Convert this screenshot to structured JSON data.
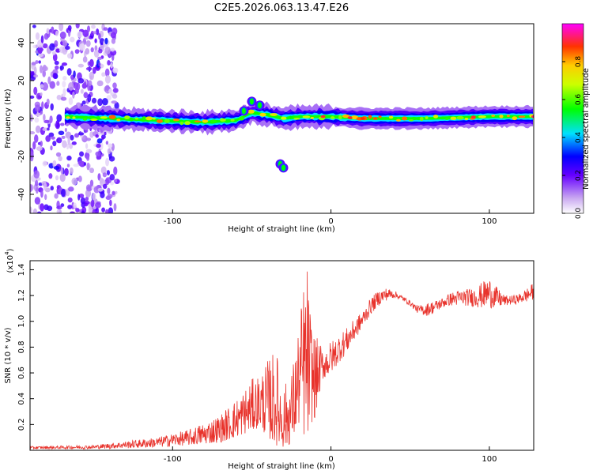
{
  "chart_data": [
    {
      "type": "heatmap",
      "title": "C2E5.2026.063.13.47.E26",
      "xlabel": "Height of straight line (km)",
      "ylabel": "Frequency (Hz)",
      "xlim": [
        -190,
        128
      ],
      "ylim": [
        -50,
        50
      ],
      "xticks": [
        "-100",
        "0",
        "100"
      ],
      "yticks": [
        "40",
        "20",
        "0",
        "-20",
        "-40"
      ],
      "colorbar": {
        "label": "Normalized spectral amplitude",
        "range": [
          0,
          1
        ],
        "ticks": [
          "0.0",
          "0.2",
          "0.4",
          "0.6",
          "0.8"
        ]
      },
      "features": [
        {
          "name": "noise-region",
          "x_range": [
            -190,
            -135
          ],
          "y_range": [
            -50,
            50
          ],
          "amplitude": 0.15
        },
        {
          "name": "main-trace",
          "points": [
            [
              -168,
              1
            ],
            [
              -140,
              0
            ],
            [
              -110,
              -1
            ],
            [
              -80,
              -2
            ],
            [
              -60,
              -1
            ],
            [
              -50,
              3
            ],
            [
              -40,
              2
            ],
            [
              -30,
              0
            ],
            [
              -20,
              1
            ],
            [
              0,
              1
            ],
            [
              20,
              0
            ],
            [
              60,
              0
            ],
            [
              100,
              1
            ],
            [
              128,
              1
            ]
          ]
        },
        {
          "name": "upper-branch",
          "points": [
            [
              -55,
              4
            ],
            [
              -50,
              9
            ],
            [
              -45,
              7
            ]
          ]
        },
        {
          "name": "isolated-blob",
          "points": [
            [
              -32,
              -24
            ],
            [
              -30,
              -26
            ]
          ]
        }
      ]
    },
    {
      "type": "line",
      "xlabel": "Height of straight line (km)",
      "ylabel": "SNR (10 * v/v)",
      "y_scale_label": "(x10",
      "y_scale_exp": "4",
      "xlim": [
        -190,
        128
      ],
      "ylim": [
        0,
        1.47
      ],
      "xticks": [
        "-100",
        "0",
        "100"
      ],
      "yticks": [
        "0.2",
        "0.4",
        "0.6",
        "0.8",
        "1.0",
        "1.2",
        "1.4"
      ],
      "series": [
        {
          "name": "SNR",
          "color": "#e8332c",
          "envelope": {
            "x": [
              -190,
              -150,
              -130,
              -110,
              -90,
              -80,
              -70,
              -60,
              -50,
              -45,
              -40,
              -35,
              -30,
              -25,
              -20,
              -17,
              -15,
              -13,
              -10,
              -8,
              -5,
              0,
              5,
              10,
              15,
              20,
              25,
              30,
              35,
              40,
              45,
              50,
              55,
              60,
              65,
              70,
              75,
              80,
              85,
              90,
              95,
              100,
              105,
              110,
              115,
              120,
              128
            ],
            "low": [
              0.01,
              0.01,
              0.015,
              0.02,
              0.04,
              0.05,
              0.06,
              0.1,
              0.15,
              0.18,
              0.1,
              0.04,
              0.02,
              0.05,
              0.2,
              0.1,
              0.06,
              0.2,
              0.25,
              0.4,
              0.55,
              0.6,
              0.68,
              0.75,
              0.85,
              0.95,
              1.05,
              1.12,
              1.16,
              1.18,
              1.16,
              1.12,
              1.06,
              1.04,
              1.06,
              1.1,
              1.12,
              1.12,
              1.12,
              1.11,
              1.1,
              1.1,
              1.1,
              1.12,
              1.13,
              1.14,
              1.16
            ],
            "high": [
              0.03,
              0.04,
              0.07,
              0.1,
              0.16,
              0.22,
              0.28,
              0.4,
              0.55,
              0.6,
              0.7,
              0.8,
              0.5,
              0.6,
              1.0,
              1.35,
              1.45,
              1.1,
              0.9,
              0.85,
              0.8,
              0.85,
              0.9,
              0.95,
              1.02,
              1.08,
              1.18,
              1.24,
              1.26,
              1.24,
              1.2,
              1.16,
              1.12,
              1.14,
              1.16,
              1.18,
              1.22,
              1.24,
              1.25,
              1.26,
              1.3,
              1.34,
              1.26,
              1.2,
              1.2,
              1.22,
              1.3
            ]
          }
        }
      ]
    }
  ]
}
